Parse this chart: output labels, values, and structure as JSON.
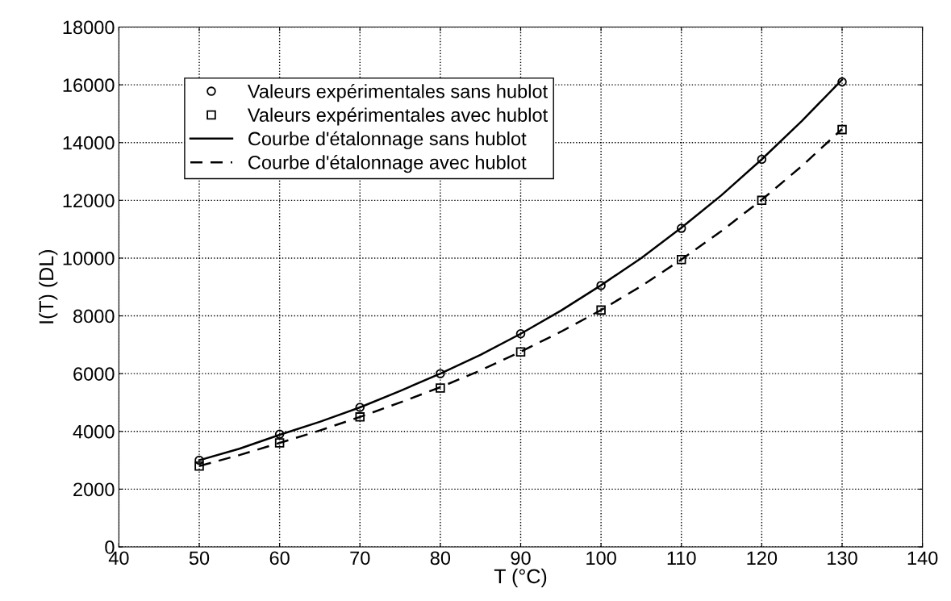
{
  "chart_data": {
    "type": "line",
    "xlabel": "T (°C)",
    "ylabel": "I(T) (DL)",
    "xlim": [
      40,
      140
    ],
    "xticks": [
      40,
      50,
      60,
      70,
      80,
      90,
      100,
      110,
      120,
      130,
      140
    ],
    "ylim": [
      0,
      18000
    ],
    "yticks": [
      0,
      2000,
      4000,
      6000,
      8000,
      10000,
      12000,
      14000,
      16000,
      18000
    ],
    "grid": true,
    "legend": "top left",
    "series": [
      {
        "name": "Valeurs expérimentales sans hublot",
        "type": "scatter",
        "marker": "circle",
        "color": "#000000",
        "x": [
          50,
          60,
          70,
          80,
          90,
          100,
          110,
          120,
          130
        ],
        "values": [
          3000,
          3900,
          4830,
          6000,
          7380,
          9050,
          11030,
          13420,
          16100
        ]
      },
      {
        "name": "Valeurs expérimentales avec hublot",
        "type": "scatter",
        "marker": "square",
        "color": "#000000",
        "x": [
          50,
          60,
          70,
          80,
          90,
          100,
          110,
          120,
          130
        ],
        "values": [
          2800,
          3600,
          4500,
          5500,
          6750,
          8200,
          9950,
          12000,
          14450
        ]
      },
      {
        "name": "Courbe d'étalonnage sans hublot",
        "type": "line",
        "line_style": "solid",
        "color": "#000000",
        "x": [
          50,
          55,
          60,
          65,
          70,
          75,
          80,
          85,
          90,
          95,
          100,
          105,
          110,
          115,
          120,
          125,
          130
        ],
        "values": [
          3000,
          3400,
          3880,
          4330,
          4830,
          5400,
          6000,
          6650,
          7380,
          8180,
          9060,
          10000,
          11050,
          12180,
          13420,
          14750,
          16180
        ]
      },
      {
        "name": "Courbe d'étalonnage avec hublot",
        "type": "line",
        "line_style": "dashed",
        "color": "#000000",
        "x": [
          50,
          55,
          60,
          65,
          70,
          75,
          80,
          85,
          90,
          95,
          100,
          105,
          110,
          115,
          120,
          125,
          130
        ],
        "values": [
          2800,
          3180,
          3600,
          4030,
          4500,
          5000,
          5530,
          6110,
          6760,
          7450,
          8200,
          9030,
          9950,
          10940,
          12020,
          13190,
          14470
        ]
      }
    ]
  }
}
